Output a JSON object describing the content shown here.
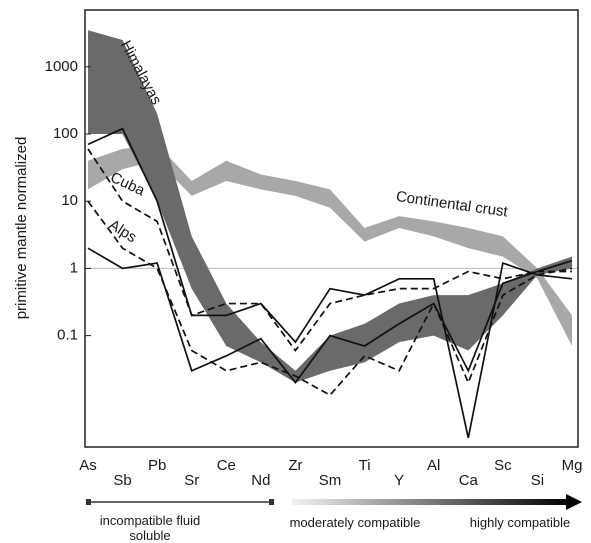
{
  "chart_data": {
    "type": "spider",
    "ylabel": "primitive mantle normalized",
    "log_y": true,
    "categories": [
      "As",
      "Sb",
      "Pb",
      "Sr",
      "Ce",
      "Nd",
      "Zr",
      "Sm",
      "Ti",
      "Y",
      "Al",
      "Ca",
      "Sc",
      "Si",
      "Mg"
    ],
    "ylim": [
      0.0022,
      7000
    ],
    "yticks": [
      1000,
      100,
      10,
      1,
      0.1
    ],
    "reference_line": 1,
    "bands": [
      {
        "name": "Continental crust",
        "color": "#a8a8a8",
        "low": [
          15,
          30,
          40,
          12,
          20,
          15,
          12,
          8,
          2.5,
          4,
          3,
          2,
          1.5,
          0.7,
          0.07
        ],
        "high": [
          40,
          60,
          70,
          20,
          40,
          25,
          20,
          15,
          4,
          6,
          5,
          4,
          3,
          1,
          0.2
        ]
      },
      {
        "name": "Himalayas",
        "color": "#6a6a6a",
        "low": [
          100,
          100,
          10,
          0.5,
          0.07,
          0.04,
          0.02,
          0.03,
          0.04,
          0.08,
          0.1,
          0.06,
          0.2,
          0.8,
          1
        ],
        "high": [
          3500,
          2500,
          200,
          3,
          0.3,
          0.08,
          0.03,
          0.1,
          0.15,
          0.3,
          0.4,
          0.4,
          0.6,
          1,
          1.5
        ]
      }
    ],
    "series": [
      {
        "name": "Cuba",
        "color": "#111111",
        "dashed": true,
        "values": [
          60,
          10,
          5,
          0.2,
          0.3,
          0.3,
          0.06,
          0.3,
          0.4,
          0.5,
          0.5,
          0.9,
          0.7,
          0.9,
          0.9
        ]
      },
      {
        "color": "#111111",
        "dashed": true,
        "values": [
          10,
          2,
          1,
          0.06,
          0.03,
          0.04,
          0.025,
          0.013,
          0.05,
          0.03,
          0.3,
          0.02,
          0.4,
          0.8,
          1
        ]
      },
      {
        "name": "Alps",
        "color": "#111111",
        "dashed": false,
        "values": [
          70,
          120,
          10,
          0.2,
          0.2,
          0.3,
          0.08,
          0.5,
          0.4,
          0.7,
          0.7,
          0.003,
          1.2,
          0.8,
          0.7
        ]
      },
      {
        "color": "#111111",
        "dashed": false,
        "values": [
          2,
          1,
          1.2,
          0.03,
          0.05,
          0.09,
          0.02,
          0.1,
          0.07,
          0.15,
          0.3,
          0.03,
          0.6,
          0.9,
          1.3
        ]
      }
    ],
    "compatibility_scale": [
      "incompatible fluid soluble",
      "moderately compatible",
      "highly compatible"
    ]
  }
}
